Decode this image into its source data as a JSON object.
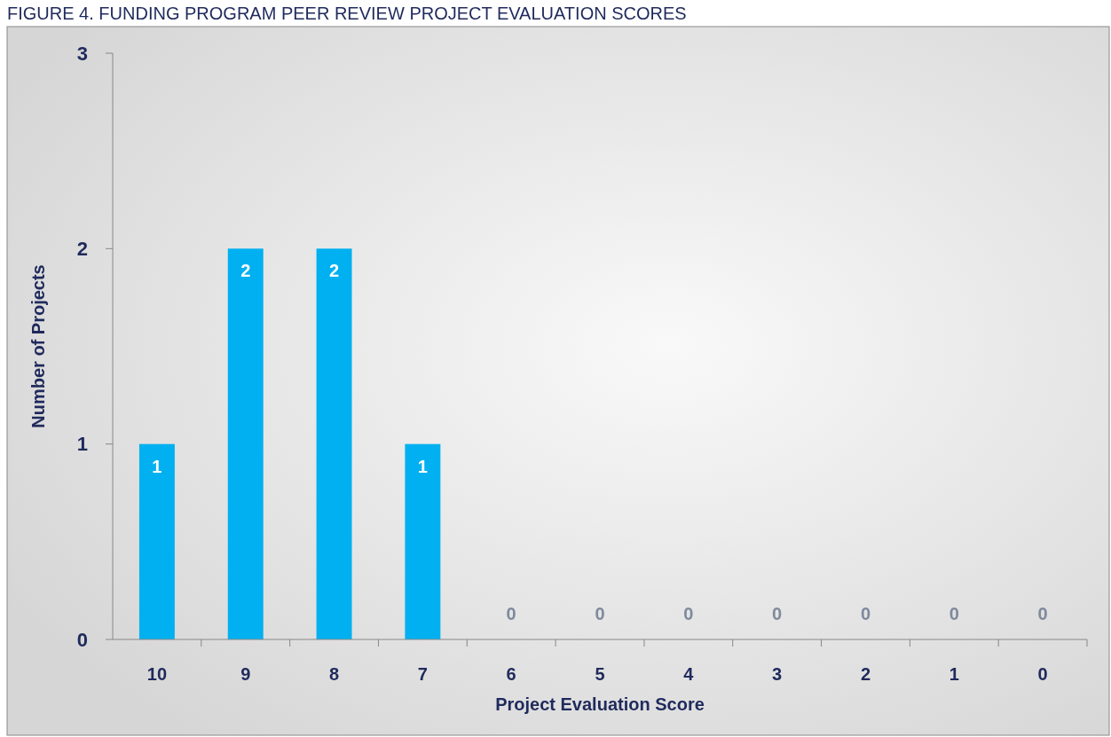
{
  "chart_data": {
    "type": "bar",
    "title": "FIGURE 4. FUNDING PROGRAM PEER REVIEW PROJECT EVALUATION SCORES",
    "xlabel": "Project Evaluation Score",
    "ylabel": "Number of Projects",
    "categories": [
      "10",
      "9",
      "8",
      "7",
      "6",
      "5",
      "4",
      "3",
      "2",
      "1",
      "0"
    ],
    "values": [
      1,
      2,
      2,
      1,
      0,
      0,
      0,
      0,
      0,
      0,
      0
    ],
    "color": "#00b0f0",
    "ylim": [
      0,
      3
    ],
    "yticks": [
      0,
      1,
      2,
      3
    ],
    "grid": false,
    "data_labels": true
  }
}
